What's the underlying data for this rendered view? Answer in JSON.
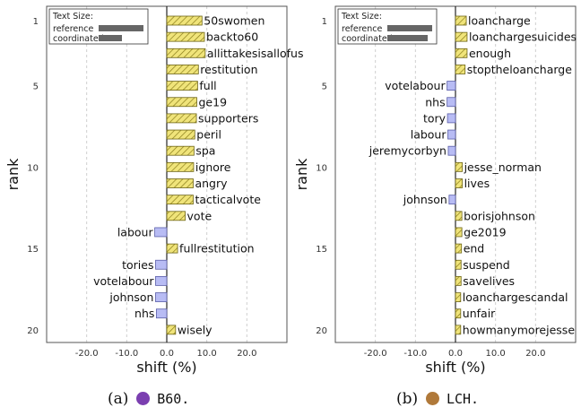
{
  "chart_data": [
    {
      "type": "bar",
      "panel_id": "a",
      "xlabel": "shift (%)",
      "ylabel": "rank",
      "xlim": [
        -30,
        30
      ],
      "x_ticks": [
        -20,
        -10,
        0,
        10,
        20
      ],
      "x_tick_labels": [
        "-20.0",
        "-10.0",
        "0.0",
        "10.0",
        "20.0"
      ],
      "y_ticks": [
        1,
        5,
        10,
        15,
        20
      ],
      "y_tick_labels": [
        "1",
        "5",
        "10",
        "15",
        "20"
      ],
      "grid": "vertical dashed",
      "legend": {
        "placement": "top-left",
        "title": "Text Size:",
        "entries": [
          {
            "label": "reference",
            "value": 1.0
          },
          {
            "label": "coordinated",
            "value": 0.52
          }
        ]
      },
      "positive_color": "#f0e47a",
      "negative_color": "#b8bcf4",
      "series": [
        {
          "words": [
            "50swomen",
            "backto60",
            "allittakesisallofus",
            "restitution",
            "full",
            "ge19",
            "supporters",
            "peril",
            "spa",
            "ignore",
            "angry",
            "tacticalvote",
            "vote",
            "labour",
            "fullrestitution",
            "tories",
            "votelabour",
            "johnson",
            "nhs",
            "wisely"
          ],
          "values": [
            8.8,
            9.4,
            9.6,
            7.9,
            7.7,
            7.5,
            7.4,
            7.0,
            6.8,
            6.7,
            6.6,
            6.6,
            4.6,
            -3.0,
            2.7,
            -2.8,
            -2.8,
            -2.8,
            -2.6,
            2.2
          ]
        }
      ]
    },
    {
      "type": "bar",
      "panel_id": "b",
      "xlabel": "shift (%)",
      "ylabel": "rank",
      "xlim": [
        -30,
        30
      ],
      "x_ticks": [
        -20,
        -10,
        0,
        10,
        20
      ],
      "x_tick_labels": [
        "-20.0",
        "-10.0",
        "0.0",
        "10.0",
        "20.0"
      ],
      "y_ticks": [
        1,
        5,
        10,
        15,
        20
      ],
      "y_tick_labels": [
        "1",
        "5",
        "10",
        "15",
        "20"
      ],
      "grid": "vertical dashed",
      "legend": {
        "placement": "top-left",
        "title": "Text Size:",
        "entries": [
          {
            "label": "reference",
            "value": 1.0
          },
          {
            "label": "coordinated",
            "value": 0.9
          }
        ]
      },
      "positive_color": "#f0e47a",
      "negative_color": "#b8bcf4",
      "series": [
        {
          "words": [
            "loancharge",
            "loanchargesuicides",
            "enough",
            "stoptheloancharge",
            "votelabour",
            "nhs",
            "tory",
            "labour",
            "jeremycorbyn",
            "jesse_norman",
            "lives",
            "johnson",
            "borisjohnson",
            "ge2019",
            "end",
            "suspend",
            "savelives",
            "loanchargescandal",
            "unfair",
            "howmanymorejesse"
          ],
          "values": [
            2.7,
            2.9,
            2.9,
            2.4,
            -2.1,
            -2.1,
            -2.0,
            -1.9,
            -1.8,
            1.7,
            1.7,
            -1.6,
            1.6,
            1.6,
            1.5,
            1.4,
            1.4,
            1.3,
            1.3,
            1.3
          ]
        }
      ]
    }
  ],
  "captions": [
    {
      "prefix": "(a)",
      "code": "B60.",
      "dot_color": "#7b3fb0"
    },
    {
      "prefix": "(b)",
      "code": "LCH.",
      "dot_color": "#b0793a"
    }
  ]
}
